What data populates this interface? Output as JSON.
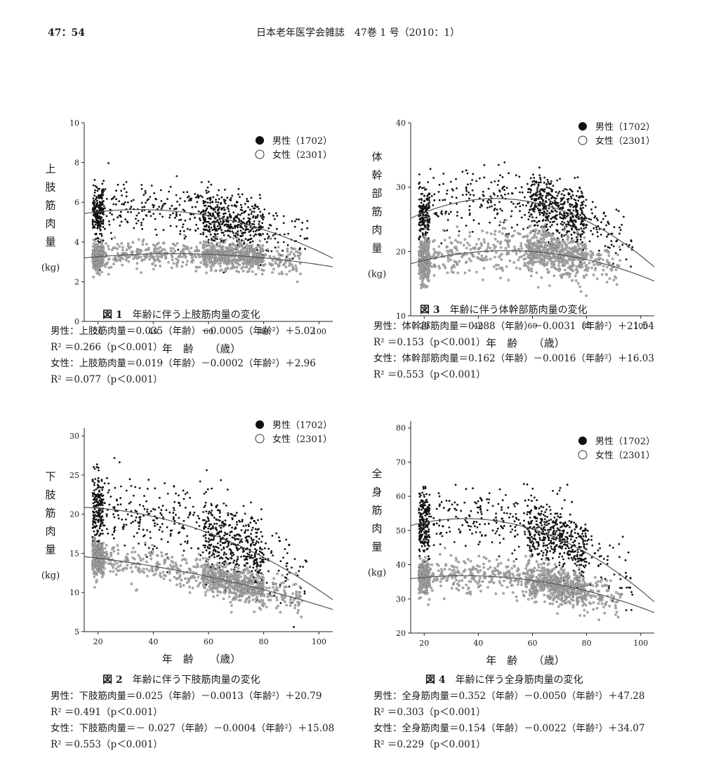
{
  "header": {
    "page_number": "47：54",
    "journal": "日本老年医学会雑誌　47巻 1 号（2010：1）"
  },
  "chart_data": [
    {
      "type": "scatter",
      "figure_label": "図 1",
      "caption": "年齢に伴う上肢筋肉量の変化",
      "ylabel_chars": [
        "上",
        "肢",
        "筋",
        "肉",
        "量"
      ],
      "yunit": "(kg)",
      "xlabel": "年　齢　　（歳）",
      "xlim": [
        15,
        105
      ],
      "ylim": [
        0,
        10
      ],
      "xticks": [
        20,
        40,
        60,
        80,
        100
      ],
      "yticks": [
        0,
        2,
        4,
        6,
        8,
        10
      ],
      "legend": [
        {
          "name": "男性（1702）",
          "marker": "filled"
        },
        {
          "name": "女性（2301）",
          "marker": "open"
        }
      ],
      "legend_position": "top-right",
      "series": [
        {
          "name": "男性",
          "n": 1702,
          "color": "#111111",
          "fit": {
            "a": 0.035,
            "b": -0.0005,
            "c": 5.02
          },
          "y_sd": 0.7,
          "min_age": 18,
          "max_age": 96
        },
        {
          "name": "女性",
          "n": 2301,
          "color": "#8a8a8a",
          "fit": {
            "a": 0.019,
            "b": -0.0002,
            "c": 2.96
          },
          "y_sd": 0.35,
          "min_age": 18,
          "max_age": 94
        }
      ],
      "equations": [
        "男性：上肢筋肉量＝0.035（年齢）－0.0005（年齢²）＋5.02",
        "R² ＝0.266（p＜0.001）",
        "女性：上肢筋肉量＝0.019（年齢）－0.0002（年齢²）＋2.96",
        "R² ＝0.077（p＜0.001）"
      ]
    },
    {
      "type": "scatter",
      "figure_label": "図 3",
      "caption": "年齢に伴う体幹部筋肉量の変化",
      "ylabel_chars": [
        "体",
        "幹",
        "部",
        "筋",
        "肉",
        "量"
      ],
      "yunit": "(kg)",
      "xlabel": "年　齢　　（歳）",
      "xlim": [
        15,
        105
      ],
      "ylim": [
        10,
        40
      ],
      "xticks": [
        20,
        40,
        60,
        80,
        100
      ],
      "yticks": [
        10,
        20,
        30,
        40
      ],
      "legend": [
        {
          "name": "男性（1702）",
          "marker": "filled"
        },
        {
          "name": "女性（2301）",
          "marker": "open"
        }
      ],
      "legend_position": "top-right",
      "series": [
        {
          "name": "男性",
          "n": 1702,
          "color": "#111111",
          "fit": {
            "a": 0.288,
            "b": -0.0031,
            "c": 21.54
          },
          "y_sd": 2.2,
          "min_age": 18,
          "max_age": 97
        },
        {
          "name": "女性",
          "n": 2301,
          "color": "#8a8a8a",
          "fit": {
            "a": 0.162,
            "b": -0.0016,
            "c": 16.03
          },
          "y_sd": 1.6,
          "min_age": 18,
          "max_age": 93
        }
      ],
      "equations": [
        "男性：体幹部筋肉量＝0.288（年齢）－0.0031（年齢²）＋21.54",
        "R² ＝0.153（p＜0.001）",
        "女性：体幹部筋肉量＝0.162（年齢）－0.0016（年齢²）＋16.03",
        "R² ＝0.553（p＜0.001）"
      ]
    },
    {
      "type": "scatter",
      "figure_label": "図 2",
      "caption": "年齢に伴う下肢筋肉量の変化",
      "ylabel_chars": [
        "下",
        "肢",
        "筋",
        "肉",
        "量"
      ],
      "yunit": "(kg)",
      "xlabel": "年　齢　　（歳）",
      "xlim": [
        15,
        105
      ],
      "ylim": [
        5,
        31
      ],
      "xticks": [
        20,
        40,
        60,
        80,
        100
      ],
      "yticks": [
        5,
        10,
        15,
        20,
        25,
        30
      ],
      "legend": [
        {
          "name": "男性（1702）",
          "marker": "filled"
        },
        {
          "name": "女性（2301）",
          "marker": "open"
        }
      ],
      "legend_position": "top-right",
      "series": [
        {
          "name": "男性",
          "n": 1702,
          "color": "#111111",
          "fit": {
            "a": 0.025,
            "b": -0.0013,
            "c": 20.79
          },
          "y_sd": 2.4,
          "min_age": 18,
          "max_age": 96
        },
        {
          "name": "女性",
          "n": 2301,
          "color": "#8a8a8a",
          "fit": {
            "a": -0.027,
            "b": -0.0004,
            "c": 15.08
          },
          "y_sd": 1.1,
          "min_age": 18,
          "max_age": 94
        }
      ],
      "equations": [
        "男性：下肢筋肉量＝0.025（年齢）－0.0013（年齢²）＋20.79",
        "R² ＝0.491（p＜0.001）",
        "女性：下肢筋肉量＝－ 0.027（年齢）－0.0004（年齢²）＋15.08",
        "R² ＝0.553（p＜0.001）"
      ]
    },
    {
      "type": "scatter",
      "figure_label": "図 4",
      "caption": "年齢に伴う全身筋肉量の変化",
      "ylabel_chars": [
        "全",
        "身",
        "筋",
        "肉",
        "量"
      ],
      "yunit": "(kg)",
      "xlabel": "年　齢　　（歳）",
      "xlim": [
        15,
        105
      ],
      "ylim": [
        20,
        82
      ],
      "xticks": [
        20,
        40,
        60,
        80,
        100
      ],
      "yticks": [
        20,
        30,
        40,
        50,
        60,
        70,
        80
      ],
      "legend": [
        {
          "name": "男性（1702）",
          "marker": "filled"
        },
        {
          "name": "女性（2301）",
          "marker": "open"
        }
      ],
      "legend_position": "top-right",
      "series": [
        {
          "name": "男性",
          "n": 1702,
          "color": "#111111",
          "fit": {
            "a": 0.352,
            "b": -0.005,
            "c": 47.28
          },
          "y_sd": 4.5,
          "min_age": 18,
          "max_age": 97
        },
        {
          "name": "女性",
          "n": 2301,
          "color": "#8a8a8a",
          "fit": {
            "a": 0.154,
            "b": -0.0022,
            "c": 34.07
          },
          "y_sd": 2.6,
          "min_age": 18,
          "max_age": 93
        }
      ],
      "equations": [
        "男性：全身筋肉量＝0.352（年齢）－0.0050（年齢²）＋47.28",
        "R² ＝0.303（p＜0.001）",
        "女性：全身筋肉量＝0.154（年齢）－0.0022（年齢²）＋34.07",
        "R² ＝0.229（p＜0.001）"
      ]
    }
  ]
}
